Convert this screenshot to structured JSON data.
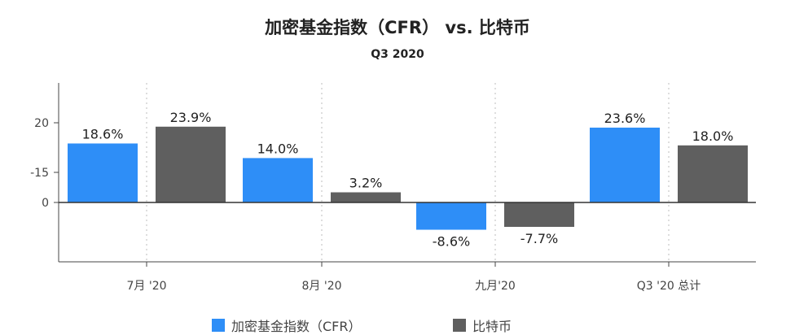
{
  "chart_data": {
    "type": "bar",
    "title": "加密基金指数（CFR） vs. 比特币",
    "subtitle": "Q3 2020",
    "categories": [
      "7月 '20",
      "8月 '20",
      "九月'20",
      "Q3 '20 总计"
    ],
    "series": [
      {
        "name": "加密基金指数（CFR）",
        "color": "#2e8ef7",
        "values": [
          18.6,
          14.0,
          -8.6,
          23.6
        ],
        "labels": [
          "18.6%",
          "14.0%",
          "-8.6%",
          "23.6%"
        ]
      },
      {
        "name": "比特币",
        "color": "#5f5f5f",
        "values": [
          23.9,
          3.2,
          -7.7,
          18.0
        ],
        "labels": [
          "23.9%",
          "3.2%",
          "-7.7%",
          "18.0%"
        ]
      }
    ],
    "y_tick_labels": [
      "20",
      "-15",
      "0"
    ],
    "grid": "vertical-dotted",
    "legend_position": "bottom"
  }
}
